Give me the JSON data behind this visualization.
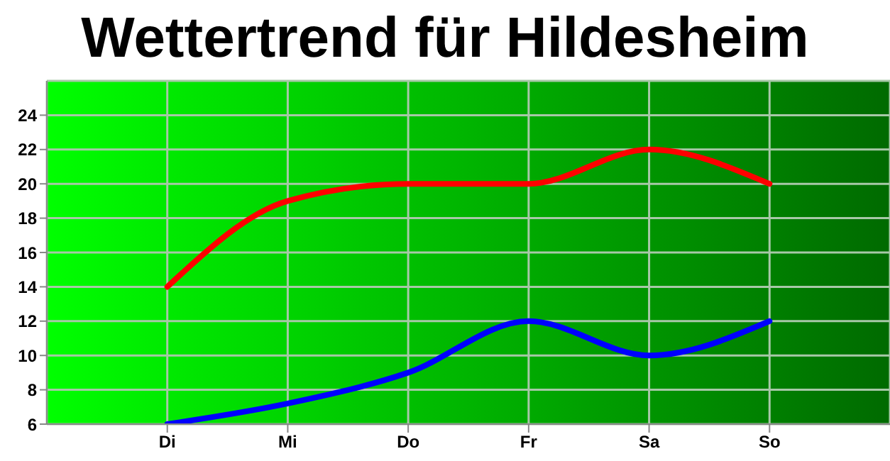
{
  "chart_data": {
    "type": "line",
    "title": "Wettertrend für Hildesheim",
    "categories": [
      "Di",
      "Mi",
      "Do",
      "Fr",
      "Sa",
      "So"
    ],
    "series": [
      {
        "color": "#ff0000",
        "values": [
          14,
          19,
          20,
          20,
          22,
          20
        ]
      },
      {
        "color": "#0000ff",
        "values": [
          6,
          7.2,
          9,
          12,
          10,
          12
        ]
      }
    ],
    "ylim": [
      6,
      26
    ],
    "yticks": [
      6,
      8,
      10,
      12,
      14,
      16,
      18,
      20,
      22,
      24
    ],
    "grid": true,
    "marker": "none",
    "line_style": "solid"
  }
}
